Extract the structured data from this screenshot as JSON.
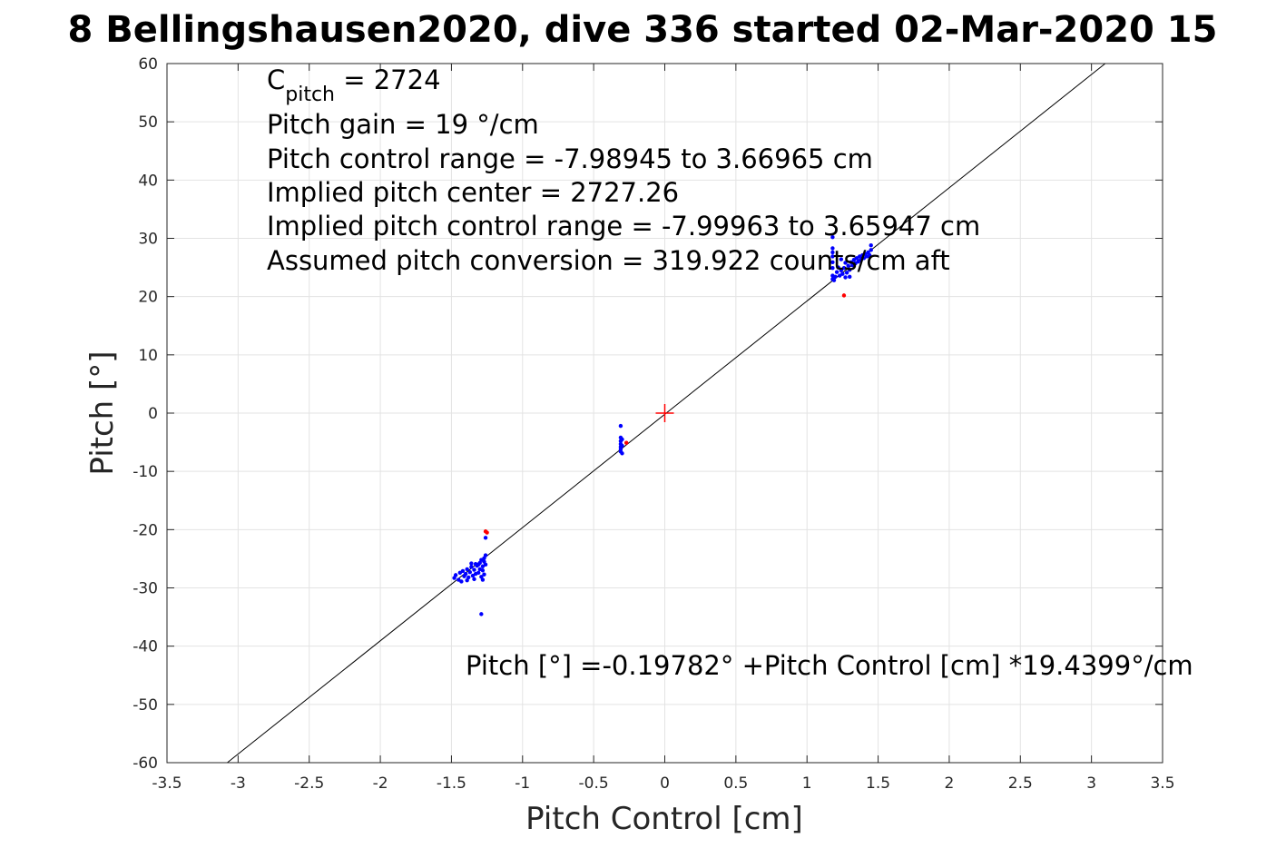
{
  "chart_data": {
    "type": "scatter",
    "title": "8 Bellingshausen2020, dive 336 started 02-Mar-2020 15",
    "xlabel": "Pitch Control [cm]",
    "ylabel": "Pitch [°]",
    "xlim": [
      -3.5,
      3.5
    ],
    "ylim": [
      -60,
      60
    ],
    "grid": true,
    "xticks": [
      "-3.5",
      "-3",
      "-2.5",
      "-2",
      "-1.5",
      "-1",
      "-0.5",
      "0",
      "0.5",
      "1",
      "1.5",
      "2",
      "2.5",
      "3",
      "3.5"
    ],
    "yticks": [
      "-60",
      "-50",
      "-40",
      "-30",
      "-20",
      "-10",
      "0",
      "10",
      "20",
      "30",
      "40",
      "50",
      "60"
    ],
    "annotations": {
      "c_pitch_symbol": "C",
      "c_pitch_subscript": "pitch",
      "c_pitch_value": " = 2724",
      "pitch_gain": "Pitch gain = 19 °/cm",
      "control_range": "Pitch control range = -7.98945 to 3.66965 cm",
      "implied_center": "Implied pitch center = 2727.26",
      "implied_range": "Implied pitch control range = -7.99963 to 3.65947 cm",
      "assumed_conversion": "Assumed pitch conversion = 319.922 counts/cm aft",
      "fit_equation": "Pitch [°] =-0.19782° +Pitch Control [cm] *19.4399°/cm"
    },
    "fit_line": {
      "intercept": -0.19782,
      "slope": 19.4399,
      "color": "#000000"
    },
    "center_marker": {
      "x": 0,
      "y": 0,
      "color": "#ff0000"
    },
    "series": [
      {
        "color": "#0000ff",
        "points": [
          [
            -1.48,
            -28.3
          ],
          [
            -1.47,
            -27.8
          ],
          [
            -1.45,
            -28.6
          ],
          [
            -1.44,
            -27.4
          ],
          [
            -1.43,
            -28.9
          ],
          [
            -1.42,
            -27.1
          ],
          [
            -1.41,
            -28.0
          ],
          [
            -1.4,
            -27.6
          ],
          [
            -1.39,
            -26.8
          ],
          [
            -1.38,
            -28.2
          ],
          [
            -1.37,
            -27.3
          ],
          [
            -1.36,
            -26.4
          ],
          [
            -1.35,
            -27.9
          ],
          [
            -1.34,
            -26.9
          ],
          [
            -1.33,
            -25.9
          ],
          [
            -1.33,
            -27.6
          ],
          [
            -1.32,
            -26.2
          ],
          [
            -1.31,
            -27.4
          ],
          [
            -1.3,
            -25.7
          ],
          [
            -1.3,
            -26.8
          ],
          [
            -1.29,
            -28.1
          ],
          [
            -1.29,
            -25.2
          ],
          [
            -1.28,
            -27.0
          ],
          [
            -1.28,
            -26.3
          ],
          [
            -1.28,
            -28.6
          ],
          [
            -1.27,
            -25.5
          ],
          [
            -1.27,
            -24.9
          ],
          [
            -1.27,
            -27.7
          ],
          [
            -1.26,
            -24.4
          ],
          [
            -1.26,
            -26.0
          ],
          [
            -1.26,
            -21.4
          ],
          [
            -1.29,
            -34.5
          ],
          [
            -1.34,
            -28.5
          ],
          [
            -1.39,
            -28.7
          ],
          [
            -1.31,
            -26.0
          ],
          [
            -1.36,
            -25.8
          ],
          [
            -0.31,
            -2.2
          ],
          [
            -0.31,
            -4.2
          ],
          [
            -0.31,
            -4.8
          ],
          [
            -0.31,
            -5.3
          ],
          [
            -0.31,
            -5.8
          ],
          [
            -0.31,
            -6.2
          ],
          [
            -0.31,
            -6.6
          ],
          [
            -0.3,
            -4.5
          ],
          [
            -0.3,
            -5.6
          ],
          [
            -0.3,
            -6.9
          ],
          [
            1.18,
            30.2
          ],
          [
            1.18,
            28.3
          ],
          [
            1.18,
            27.6
          ],
          [
            1.18,
            26.9
          ],
          [
            1.18,
            25.9
          ],
          [
            1.18,
            24.9
          ],
          [
            1.18,
            23.6
          ],
          [
            1.18,
            23.0
          ],
          [
            1.19,
            22.8
          ],
          [
            1.2,
            23.4
          ],
          [
            1.21,
            24.2
          ],
          [
            1.22,
            25.0
          ],
          [
            1.23,
            23.6
          ],
          [
            1.24,
            24.5
          ],
          [
            1.25,
            23.9
          ],
          [
            1.26,
            24.9
          ],
          [
            1.27,
            23.3
          ],
          [
            1.28,
            24.1
          ],
          [
            1.29,
            25.3
          ],
          [
            1.3,
            24.6
          ],
          [
            1.3,
            23.4
          ],
          [
            1.31,
            25.9
          ],
          [
            1.32,
            25.4
          ],
          [
            1.33,
            26.3
          ],
          [
            1.34,
            25.7
          ],
          [
            1.35,
            26.6
          ],
          [
            1.36,
            26.0
          ],
          [
            1.37,
            26.9
          ],
          [
            1.38,
            26.3
          ],
          [
            1.39,
            27.1
          ],
          [
            1.4,
            26.6
          ],
          [
            1.41,
            27.3
          ],
          [
            1.42,
            26.9
          ],
          [
            1.43,
            27.6
          ],
          [
            1.44,
            27.1
          ],
          [
            1.45,
            28.0
          ],
          [
            1.45,
            28.8
          ],
          [
            1.44,
            26.9
          ],
          [
            1.27,
            25.8
          ],
          [
            1.24,
            26.4
          ]
        ]
      },
      {
        "color": "#ff0000",
        "points": [
          [
            -1.26,
            -20.3
          ],
          [
            -1.25,
            -20.5
          ],
          [
            -0.27,
            -5.1
          ],
          [
            1.26,
            20.2
          ]
        ]
      }
    ]
  }
}
